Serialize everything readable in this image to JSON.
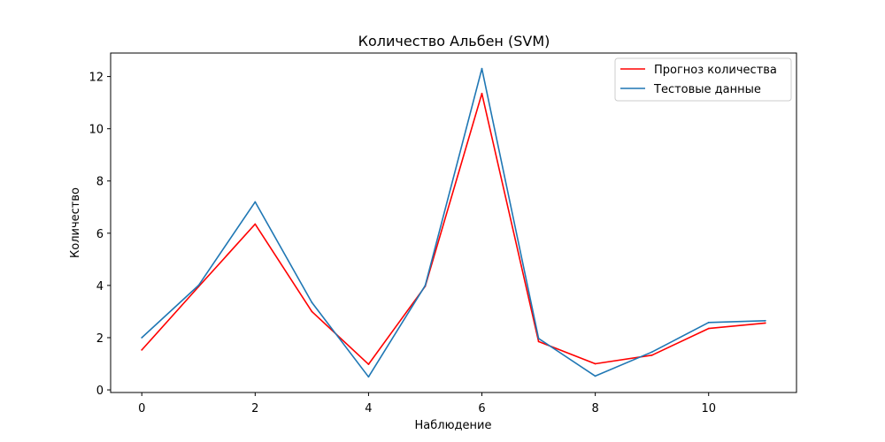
{
  "chart_data": {
    "type": "line",
    "title": "Количество Альбен (SVM)",
    "xlabel": "Наблюдение",
    "ylabel": "Количество",
    "x": [
      0,
      1,
      2,
      3,
      4,
      5,
      6,
      7,
      8,
      9,
      10,
      11
    ],
    "xlim": [
      -0.55,
      11.55
    ],
    "ylim": [
      -0.1,
      12.9
    ],
    "xticks": [
      0,
      2,
      4,
      6,
      8,
      10
    ],
    "yticks": [
      0,
      2,
      4,
      6,
      8,
      10,
      12
    ],
    "grid": false,
    "legend_position": "top-right",
    "series": [
      {
        "name": "Прогноз количества",
        "color": "#ff0000",
        "values": [
          1.53,
          3.95,
          6.35,
          3.0,
          0.98,
          3.97,
          11.35,
          1.85,
          1.0,
          1.33,
          2.35,
          2.56
        ]
      },
      {
        "name": "Тестовые данные",
        "color": "#1f77b4",
        "values": [
          2.0,
          4.0,
          7.2,
          3.35,
          0.5,
          4.0,
          12.3,
          1.97,
          0.53,
          1.45,
          2.58,
          2.65
        ]
      }
    ]
  }
}
